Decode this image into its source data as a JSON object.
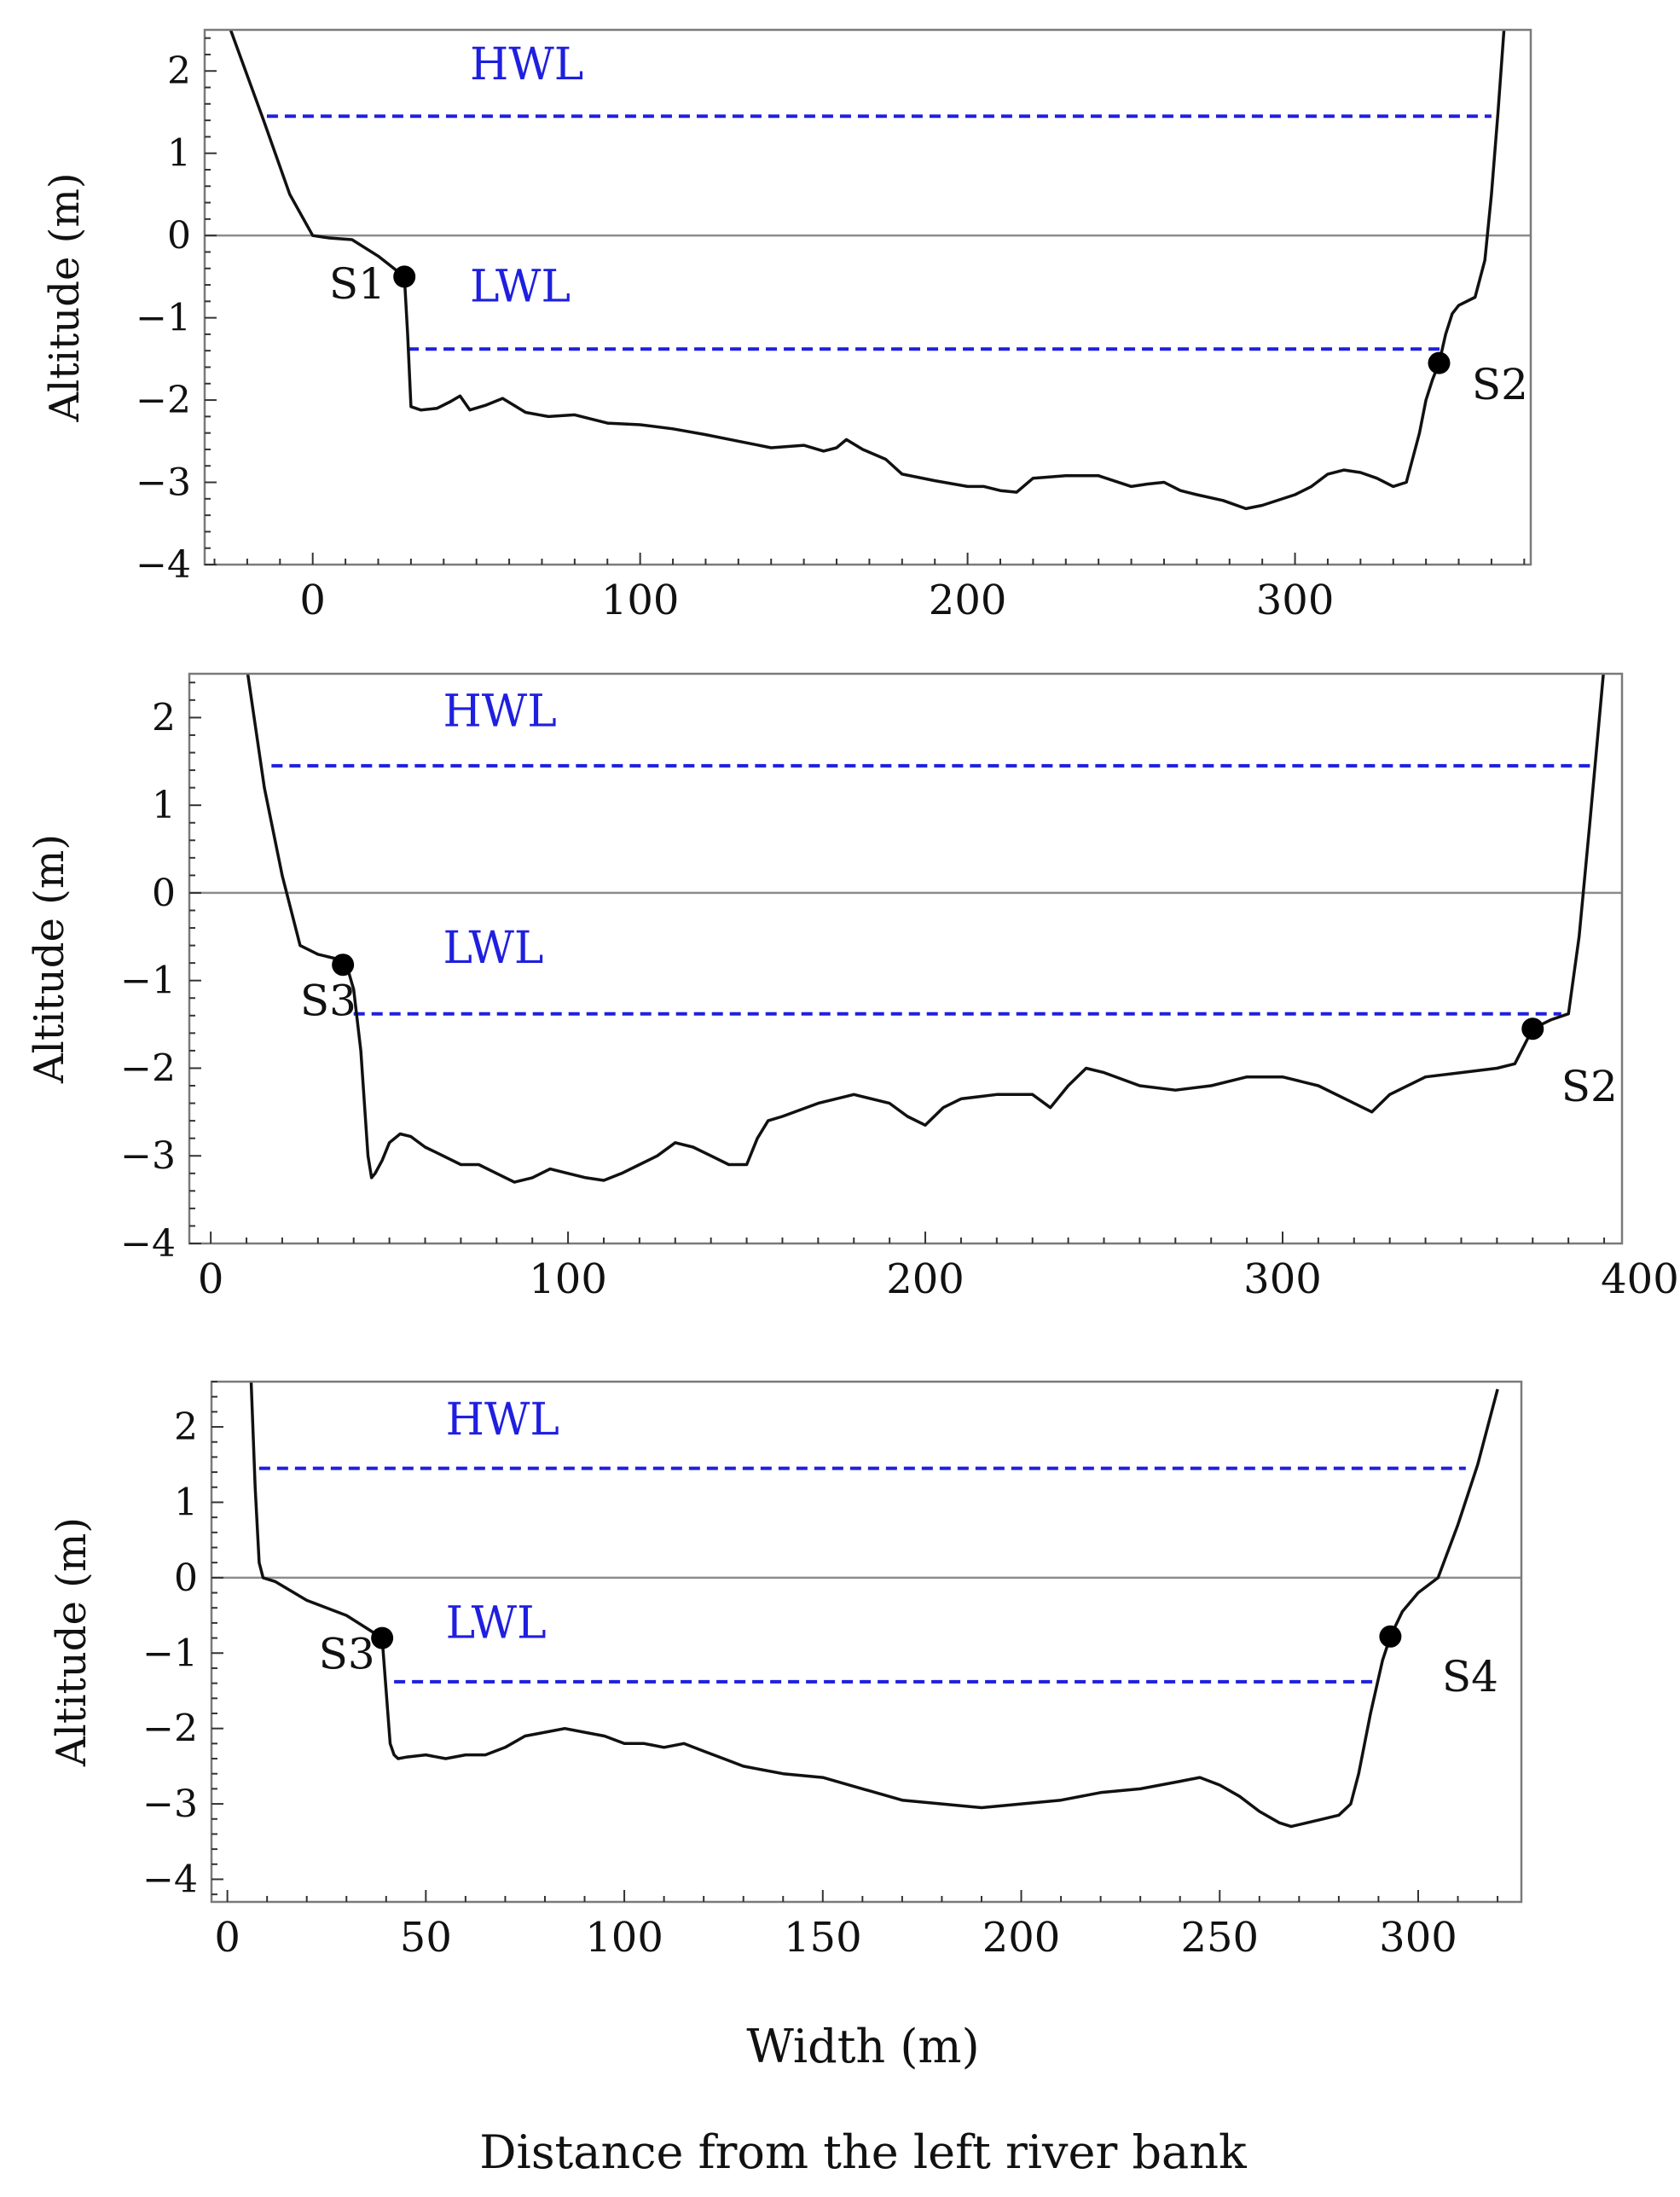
{
  "figure": {
    "shared_xlabel": "Width (m)",
    "caption": "Distance from the left river bank",
    "colors": {
      "profile": "#111111",
      "water_level": "#1f1fe0",
      "zero_line": "#8c8c8c",
      "frame": "#7a7a7a",
      "label": "#111111"
    }
  },
  "chart_data": [
    {
      "type": "line",
      "title": "",
      "xlabel": "",
      "ylabel": "Altitude (m)",
      "xlim": [
        -33,
        372
      ],
      "ylim": [
        -4,
        2.5
      ],
      "xticks": [
        0,
        100,
        200,
        300
      ],
      "xminor": 10,
      "yticks": [
        -4,
        -3,
        -2,
        -1,
        0,
        1,
        2
      ],
      "yminor": 0.2,
      "grid": false,
      "water_levels": [
        {
          "name": "HWL",
          "y": 1.45,
          "x_start": -14,
          "x_end": 360,
          "label_x": 48,
          "label_y": 1.9
        },
        {
          "name": "LWL",
          "y": -1.38,
          "x_start": 29,
          "x_end": 346,
          "label_x": 48,
          "label_y": -0.8
        }
      ],
      "stations": [
        {
          "name": "S1",
          "x": 28,
          "y": -0.5,
          "label_x": 5,
          "label_y": -0.58
        },
        {
          "name": "S2",
          "x": 344,
          "y": -1.55,
          "label_x": 354,
          "label_y": -1.8
        }
      ],
      "series": [
        {
          "name": "bed profile",
          "x": [
            -26,
            -15,
            -7,
            0,
            5,
            12,
            20,
            28,
            29,
            30,
            33,
            38,
            42,
            45,
            48,
            53,
            58,
            65,
            72,
            80,
            90,
            100,
            110,
            120,
            130,
            140,
            150,
            156,
            160,
            163,
            168,
            175,
            180,
            190,
            200,
            205,
            210,
            215,
            220,
            230,
            240,
            250,
            255,
            260,
            265,
            270,
            278,
            285,
            290,
            300,
            305,
            310,
            315,
            320,
            325,
            330,
            334,
            338,
            340,
            342,
            344,
            346,
            348,
            350,
            355,
            358,
            360,
            362,
            364
          ],
          "y": [
            2.6,
            1.4,
            0.5,
            0.0,
            -0.03,
            -0.05,
            -0.25,
            -0.5,
            -1.2,
            -2.08,
            -2.12,
            -2.1,
            -2.02,
            -1.95,
            -2.12,
            -2.06,
            -1.98,
            -2.15,
            -2.2,
            -2.18,
            -2.28,
            -2.3,
            -2.35,
            -2.42,
            -2.5,
            -2.58,
            -2.55,
            -2.62,
            -2.58,
            -2.48,
            -2.6,
            -2.72,
            -2.9,
            -2.98,
            -3.05,
            -3.05,
            -3.1,
            -3.12,
            -2.95,
            -2.92,
            -2.92,
            -3.05,
            -3.02,
            -3.0,
            -3.1,
            -3.15,
            -3.22,
            -3.32,
            -3.28,
            -3.15,
            -3.05,
            -2.9,
            -2.85,
            -2.88,
            -2.95,
            -3.05,
            -3.0,
            -2.4,
            -2.0,
            -1.75,
            -1.55,
            -1.2,
            -0.95,
            -0.85,
            -0.75,
            -0.3,
            0.5,
            1.5,
            2.6
          ]
        }
      ]
    },
    {
      "type": "line",
      "title": "",
      "xlabel": "",
      "ylabel": "Altitude (m)",
      "xlim": [
        -6,
        395
      ],
      "ylim": [
        -4,
        2.5
      ],
      "xticks": [
        0,
        100,
        200,
        300,
        400
      ],
      "xminor": 10,
      "yticks": [
        -4,
        -3,
        -2,
        -1,
        0,
        1,
        2
      ],
      "yminor": 0.2,
      "grid": false,
      "water_levels": [
        {
          "name": "HWL",
          "y": 1.45,
          "x_start": 17,
          "x_end": 387,
          "label_x": 65,
          "label_y": 1.9
        },
        {
          "name": "LWL",
          "y": -1.38,
          "x_start": 40,
          "x_end": 378,
          "label_x": 65,
          "label_y": -0.8
        }
      ],
      "stations": [
        {
          "name": "S3",
          "x": 37,
          "y": -0.82,
          "label_x": 25,
          "label_y": -1.22
        },
        {
          "name": "S2",
          "x": 370,
          "y": -1.55,
          "label_x": 378,
          "label_y": -2.2
        }
      ],
      "series": [
        {
          "name": "bed profile",
          "x": [
            10,
            15,
            20,
            25,
            30,
            35,
            38,
            40,
            42,
            44,
            45,
            46,
            48,
            50,
            53,
            56,
            60,
            65,
            70,
            75,
            80,
            85,
            90,
            95,
            100,
            105,
            110,
            115,
            120,
            125,
            130,
            135,
            140,
            145,
            150,
            153,
            156,
            160,
            170,
            180,
            190,
            195,
            200,
            205,
            210,
            220,
            230,
            235,
            240,
            245,
            250,
            260,
            270,
            280,
            290,
            300,
            310,
            320,
            325,
            330,
            340,
            350,
            360,
            365,
            370,
            375,
            380,
            383,
            386,
            390
          ],
          "y": [
            2.6,
            1.2,
            0.2,
            -0.6,
            -0.7,
            -0.75,
            -0.82,
            -1.1,
            -1.8,
            -3.0,
            -3.25,
            -3.2,
            -3.05,
            -2.85,
            -2.75,
            -2.78,
            -2.9,
            -3.0,
            -3.1,
            -3.1,
            -3.2,
            -3.3,
            -3.25,
            -3.15,
            -3.2,
            -3.25,
            -3.28,
            -3.2,
            -3.1,
            -3.0,
            -2.85,
            -2.9,
            -3.0,
            -3.1,
            -3.1,
            -2.8,
            -2.6,
            -2.55,
            -2.4,
            -2.3,
            -2.4,
            -2.55,
            -2.65,
            -2.45,
            -2.35,
            -2.3,
            -2.3,
            -2.45,
            -2.2,
            -2.0,
            -2.05,
            -2.2,
            -2.25,
            -2.2,
            -2.1,
            -2.1,
            -2.2,
            -2.4,
            -2.5,
            -2.3,
            -2.1,
            -2.05,
            -2.0,
            -1.95,
            -1.55,
            -1.45,
            -1.38,
            -0.5,
            0.8,
            2.6
          ]
        }
      ]
    },
    {
      "type": "line",
      "title": "",
      "xlabel": "Width (m)",
      "ylabel": "Altitude (m)",
      "xlim": [
        -4,
        326
      ],
      "ylim": [
        -4.3,
        2.6
      ],
      "xticks": [
        0,
        50,
        100,
        150,
        200,
        250,
        300
      ],
      "xminor": 10,
      "yticks": [
        -4,
        -3,
        -2,
        -1,
        0,
        1,
        2
      ],
      "yminor": 0.2,
      "grid": false,
      "water_levels": [
        {
          "name": "HWL",
          "y": 1.45,
          "x_start": 8,
          "x_end": 312,
          "label_x": 55,
          "label_y": 1.9
        },
        {
          "name": "LWL",
          "y": -1.38,
          "x_start": 42,
          "x_end": 290,
          "label_x": 55,
          "label_y": -0.8
        }
      ],
      "stations": [
        {
          "name": "S3",
          "x": 39,
          "y": -0.8,
          "label_x": 23,
          "label_y": -1.0
        },
        {
          "name": "S4",
          "x": 293,
          "y": -0.78,
          "label_x": 306,
          "label_y": -1.3
        }
      ],
      "series": [
        {
          "name": "bed profile",
          "x": [
            6,
            7,
            8,
            9,
            12,
            20,
            30,
            39,
            40,
            41,
            42,
            43,
            45,
            50,
            55,
            60,
            65,
            70,
            75,
            80,
            85,
            90,
            95,
            100,
            105,
            110,
            115,
            120,
            125,
            130,
            140,
            150,
            160,
            170,
            180,
            190,
            200,
            210,
            220,
            230,
            240,
            245,
            250,
            255,
            260,
            265,
            268,
            272,
            276,
            280,
            283,
            285,
            288,
            291,
            293,
            296,
            300,
            305,
            310,
            315,
            320
          ],
          "y": [
            2.6,
            1.2,
            0.2,
            0.0,
            -0.05,
            -0.3,
            -0.5,
            -0.8,
            -1.5,
            -2.2,
            -2.35,
            -2.4,
            -2.38,
            -2.35,
            -2.4,
            -2.35,
            -2.35,
            -2.25,
            -2.1,
            -2.05,
            -2.0,
            -2.05,
            -2.1,
            -2.2,
            -2.2,
            -2.25,
            -2.2,
            -2.3,
            -2.4,
            -2.5,
            -2.6,
            -2.65,
            -2.8,
            -2.95,
            -3.0,
            -3.05,
            -3.0,
            -2.95,
            -2.85,
            -2.8,
            -2.7,
            -2.65,
            -2.75,
            -2.9,
            -3.1,
            -3.25,
            -3.3,
            -3.25,
            -3.2,
            -3.15,
            -3.0,
            -2.6,
            -1.8,
            -1.1,
            -0.78,
            -0.45,
            -0.2,
            0.0,
            0.7,
            1.5,
            2.5
          ]
        }
      ]
    }
  ]
}
